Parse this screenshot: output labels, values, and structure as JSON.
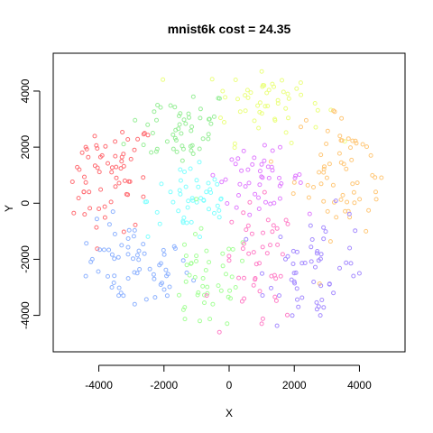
{
  "chart_data": {
    "type": "scatter",
    "title": "mnist6k  cost = 24.35",
    "xlabel": "X",
    "ylabel": "Y",
    "xlim": [
      -5400,
      5400
    ],
    "ylim": [
      -5300,
      5350
    ],
    "xticks": [
      -4000,
      -2000,
      0,
      2000,
      4000
    ],
    "yticks": [
      -4000,
      -2000,
      0,
      2000,
      4000
    ],
    "xtick_labels": [
      "-4000",
      "-2000",
      "0",
      "2000",
      "4000"
    ],
    "ytick_labels": [
      "-4000",
      "-2000",
      "0",
      "2000",
      "4000"
    ],
    "grid": false,
    "legend": "none",
    "marker": "open-circle",
    "clusters": [
      {
        "color": "#ff6f75",
        "center": [
          -3800,
          1000
        ],
        "spread": [
          800,
          1000
        ],
        "n": 55,
        "points": [
          [
            -4600,
            1200
          ],
          [
            -4300,
            400
          ],
          [
            -3900,
            1700
          ],
          [
            -3500,
            2200
          ],
          [
            -3200,
            800
          ],
          [
            -4000,
            -200
          ],
          [
            -3300,
            1500
          ],
          [
            -4400,
            2000
          ]
        ]
      },
      {
        "color": "#8fb3ff",
        "center": [
          -3000,
          -2300
        ],
        "spread": [
          900,
          800
        ],
        "n": 55,
        "points": [
          [
            -4200,
            -2000
          ],
          [
            -3600,
            -3000
          ],
          [
            -2900,
            -3600
          ],
          [
            -2300,
            -2700
          ],
          [
            -3300,
            -1500
          ],
          [
            -1900,
            -3300
          ],
          [
            -4400,
            -2600
          ],
          [
            -2600,
            -1800
          ]
        ]
      },
      {
        "color": "#99ee99",
        "center": [
          -1500,
          2700
        ],
        "spread": [
          800,
          700
        ],
        "n": 45,
        "points": [
          [
            -2200,
            3500
          ],
          [
            -1500,
            3200
          ],
          [
            -800,
            2300
          ],
          [
            -1900,
            2200
          ],
          [
            -1100,
            3800
          ],
          [
            -600,
            3000
          ],
          [
            -2500,
            2800
          ]
        ]
      },
      {
        "color": "#ebff80",
        "center": [
          1100,
          3600
        ],
        "spread": [
          900,
          700
        ],
        "n": 45,
        "points": [
          [
            200,
            4400
          ],
          [
            1000,
            4700
          ],
          [
            1800,
            3900
          ],
          [
            500,
            3300
          ],
          [
            1400,
            3000
          ],
          [
            2200,
            4300
          ],
          [
            -200,
            4000
          ]
        ]
      },
      {
        "color": "#ffc87a",
        "center": [
          3600,
          1200
        ],
        "spread": [
          800,
          1200
        ],
        "n": 55,
        "points": [
          [
            3200,
            3300
          ],
          [
            4100,
            2100
          ],
          [
            4500,
            400
          ],
          [
            3700,
            -500
          ],
          [
            2900,
            1100
          ],
          [
            3400,
            2400
          ],
          [
            4200,
            -1000
          ]
        ]
      },
      {
        "color": "#e07eff",
        "center": [
          900,
          900
        ],
        "spread": [
          700,
          500
        ],
        "n": 40,
        "points": [
          [
            200,
            1400
          ],
          [
            1200,
            1300
          ],
          [
            1600,
            700
          ],
          [
            500,
            600
          ],
          [
            -500,
            1000
          ],
          [
            900,
            200
          ]
        ]
      },
      {
        "color": "#80ffff",
        "center": [
          -1100,
          100
        ],
        "spread": [
          700,
          700
        ],
        "n": 40,
        "points": [
          [
            -1500,
            1200
          ],
          [
            -700,
            400
          ],
          [
            -1300,
            -700
          ],
          [
            -300,
            -500
          ],
          [
            -1800,
            400
          ],
          [
            -900,
            -1200
          ]
        ]
      },
      {
        "color": "#a6ff99",
        "center": [
          -700,
          -2800
        ],
        "spread": [
          700,
          900
        ],
        "n": 40,
        "points": [
          [
            -1300,
            -2200
          ],
          [
            -200,
            -1800
          ],
          [
            -500,
            -3600
          ],
          [
            -1400,
            -3800
          ],
          [
            200,
            -3000
          ],
          [
            -900,
            -4200
          ]
        ]
      },
      {
        "color": "#ff80c8",
        "center": [
          900,
          -2300
        ],
        "spread": [
          600,
          1100
        ],
        "n": 40,
        "points": [
          [
            1200,
            -600
          ],
          [
            600,
            -1800
          ],
          [
            1300,
            -2600
          ],
          [
            400,
            -3500
          ],
          [
            1000,
            -4300
          ],
          [
            -300,
            -4600
          ]
        ]
      },
      {
        "color": "#a68cff",
        "center": [
          2800,
          -2300
        ],
        "spread": [
          800,
          1000
        ],
        "n": 50,
        "points": [
          [
            2500,
            -800
          ],
          [
            3700,
            -1600
          ],
          [
            3200,
            -3200
          ],
          [
            2000,
            -2800
          ],
          [
            2800,
            -4000
          ],
          [
            4000,
            -2500
          ],
          [
            1800,
            -1900
          ]
        ]
      }
    ]
  }
}
